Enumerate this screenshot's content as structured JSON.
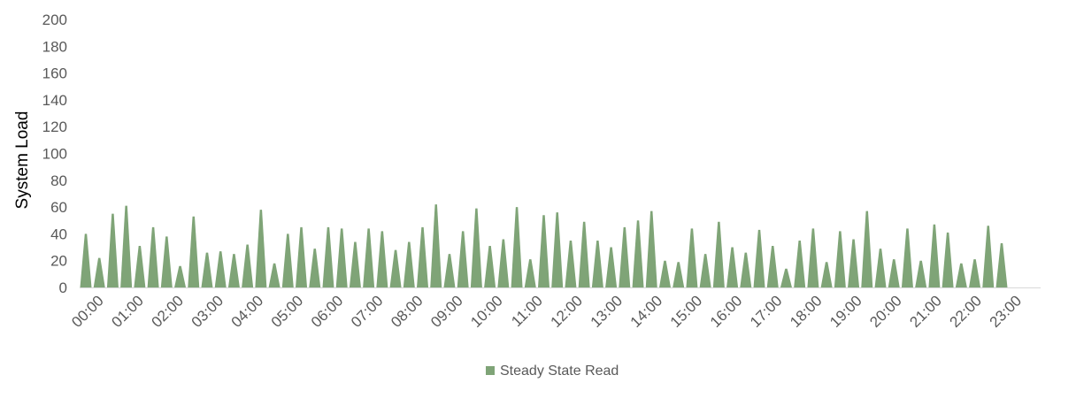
{
  "chart_data": {
    "type": "area",
    "title": "",
    "xlabel": "",
    "ylabel": "System Load",
    "ylim": [
      0,
      200
    ],
    "yticks": [
      0,
      20,
      40,
      60,
      80,
      100,
      120,
      140,
      160,
      180,
      200
    ],
    "grid": false,
    "legend_position": "bottom",
    "categories": [
      "00:00",
      "01:00",
      "02:00",
      "03:00",
      "04:00",
      "05:00",
      "06:00",
      "07:00",
      "08:00",
      "09:00",
      "10:00",
      "11:00",
      "12:00",
      "13:00",
      "14:00",
      "15:00",
      "16:00",
      "17:00",
      "18:00",
      "19:00",
      "20:00",
      "21:00",
      "22:00",
      "23:00"
    ],
    "series": [
      {
        "name": "Steady State Read",
        "color": "#7fa477",
        "peaks": [
          40,
          22,
          55,
          61,
          31,
          45,
          38,
          16,
          53,
          26,
          27,
          25,
          32,
          58,
          18,
          40,
          45,
          29,
          45,
          44,
          34,
          44,
          42,
          28,
          34,
          45,
          62,
          25,
          42,
          59,
          31,
          36,
          60,
          21,
          54,
          56,
          35,
          49,
          35,
          30,
          45,
          50,
          57,
          20,
          19,
          44,
          25,
          49,
          30,
          26,
          43,
          31,
          14,
          35,
          44,
          19,
          42,
          36,
          57,
          29,
          21,
          44,
          20,
          47,
          41,
          18,
          21,
          46,
          33
        ]
      }
    ]
  }
}
